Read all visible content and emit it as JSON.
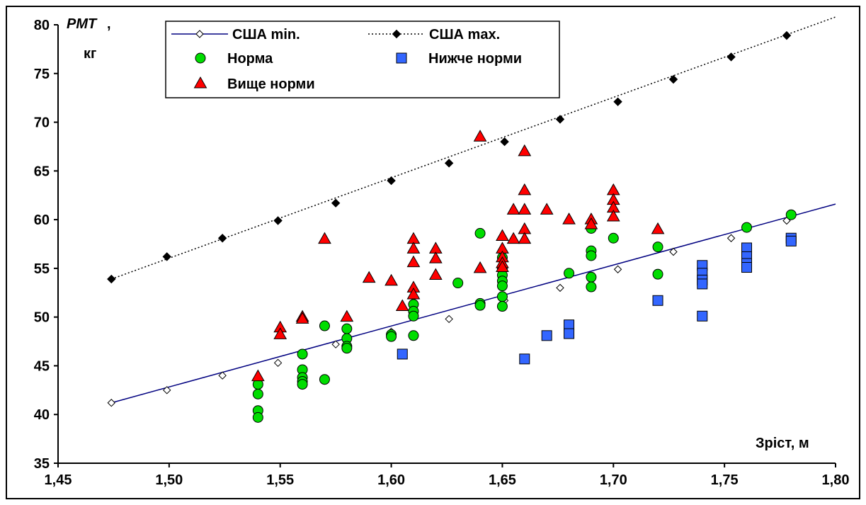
{
  "chart_data": {
    "type": "scatter",
    "xlabel": "Зріст, м",
    "ylabel_line1": "РМТ",
    "ylabel_line1_suffix": ",",
    "ylabel_line2": "кг",
    "xlim": [
      1.45,
      1.8
    ],
    "ylim": [
      35,
      80
    ],
    "x_ticks": [
      1.45,
      1.5,
      1.55,
      1.6,
      1.65,
      1.7,
      1.75,
      1.8
    ],
    "x_tick_labels": [
      "1,45",
      "1,50",
      "1,55",
      "1,60",
      "1,65",
      "1,70",
      "1,75",
      "1,80"
    ],
    "y_ticks": [
      35,
      40,
      45,
      50,
      55,
      60,
      65,
      70,
      75,
      80
    ],
    "y_tick_labels": [
      "35",
      "40",
      "45",
      "50",
      "55",
      "60",
      "65",
      "70",
      "75",
      "80"
    ],
    "grid": false,
    "legend_position": "top-left",
    "series": [
      {
        "name": "США min.",
        "kind": "line",
        "color": "#000080",
        "marker": "diamond-open",
        "points": [
          [
            1.474,
            41.2
          ],
          [
            1.499,
            42.5
          ],
          [
            1.524,
            44.0
          ],
          [
            1.549,
            45.3
          ],
          [
            1.575,
            47.2
          ],
          [
            1.6,
            48.5
          ],
          [
            1.626,
            49.8
          ],
          [
            1.651,
            51.7
          ],
          [
            1.676,
            53.0
          ],
          [
            1.702,
            54.9
          ],
          [
            1.727,
            56.7
          ],
          [
            1.753,
            58.1
          ],
          [
            1.778,
            59.9
          ]
        ],
        "line_extent": [
          [
            1.474,
            41.2
          ],
          [
            1.8,
            61.6
          ]
        ]
      },
      {
        "name": "США max.",
        "kind": "dotted-line",
        "color": "#000000",
        "marker": "diamond-filled",
        "points": [
          [
            1.474,
            53.9
          ],
          [
            1.499,
            56.2
          ],
          [
            1.524,
            58.1
          ],
          [
            1.549,
            59.9
          ],
          [
            1.575,
            61.7
          ],
          [
            1.6,
            64.0
          ],
          [
            1.626,
            65.8
          ],
          [
            1.651,
            68.0
          ],
          [
            1.676,
            70.3
          ],
          [
            1.702,
            72.1
          ],
          [
            1.727,
            74.4
          ],
          [
            1.753,
            76.7
          ],
          [
            1.778,
            78.9
          ]
        ],
        "line_extent": [
          [
            1.474,
            53.9
          ],
          [
            1.8,
            80.8
          ]
        ]
      },
      {
        "name": "Норма",
        "kind": "scatter",
        "color": "#00dd00",
        "marker": "circle",
        "points": [
          [
            1.54,
            43.1
          ],
          [
            1.54,
            42.1
          ],
          [
            1.54,
            40.4
          ],
          [
            1.54,
            39.7
          ],
          [
            1.56,
            46.2
          ],
          [
            1.56,
            44.6
          ],
          [
            1.56,
            43.8
          ],
          [
            1.56,
            43.4
          ],
          [
            1.56,
            43.1
          ],
          [
            1.57,
            49.1
          ],
          [
            1.57,
            43.6
          ],
          [
            1.58,
            48.8
          ],
          [
            1.58,
            47.8
          ],
          [
            1.58,
            47.0
          ],
          [
            1.58,
            46.8
          ],
          [
            1.6,
            48.2
          ],
          [
            1.6,
            48.0
          ],
          [
            1.61,
            51.3
          ],
          [
            1.61,
            50.6
          ],
          [
            1.61,
            50.1
          ],
          [
            1.61,
            48.1
          ],
          [
            1.63,
            53.5
          ],
          [
            1.64,
            58.6
          ],
          [
            1.64,
            51.4
          ],
          [
            1.64,
            51.2
          ],
          [
            1.65,
            56.1
          ],
          [
            1.65,
            55.0
          ],
          [
            1.65,
            54.3
          ],
          [
            1.65,
            53.7
          ],
          [
            1.65,
            53.2
          ],
          [
            1.65,
            52.1
          ],
          [
            1.65,
            51.1
          ],
          [
            1.68,
            54.5
          ],
          [
            1.69,
            59.1
          ],
          [
            1.69,
            56.8
          ],
          [
            1.69,
            56.3
          ],
          [
            1.69,
            54.1
          ],
          [
            1.69,
            53.1
          ],
          [
            1.7,
            58.1
          ],
          [
            1.72,
            57.2
          ],
          [
            1.72,
            54.4
          ],
          [
            1.76,
            59.2
          ],
          [
            1.78,
            60.5
          ]
        ]
      },
      {
        "name": "Нижче норми",
        "kind": "scatter",
        "color": "#3366ff",
        "marker": "square",
        "points": [
          [
            1.605,
            46.2
          ],
          [
            1.66,
            45.7
          ],
          [
            1.67,
            48.1
          ],
          [
            1.68,
            49.2
          ],
          [
            1.68,
            48.3
          ],
          [
            1.72,
            51.7
          ],
          [
            1.74,
            55.3
          ],
          [
            1.74,
            54.5
          ],
          [
            1.74,
            53.8
          ],
          [
            1.74,
            53.4
          ],
          [
            1.74,
            50.1
          ],
          [
            1.76,
            57.1
          ],
          [
            1.76,
            56.2
          ],
          [
            1.76,
            55.5
          ],
          [
            1.76,
            55.1
          ],
          [
            1.78,
            58.1
          ],
          [
            1.78,
            57.8
          ]
        ]
      },
      {
        "name": "Вище норми",
        "kind": "scatter",
        "color": "#ff0000",
        "marker": "triangle",
        "points": [
          [
            1.54,
            43.9
          ],
          [
            1.55,
            48.9
          ],
          [
            1.55,
            48.2
          ],
          [
            1.56,
            50.0
          ],
          [
            1.56,
            49.8
          ],
          [
            1.57,
            58.0
          ],
          [
            1.58,
            50.0
          ],
          [
            1.59,
            54.0
          ],
          [
            1.6,
            53.7
          ],
          [
            1.605,
            51.1
          ],
          [
            1.61,
            58.0
          ],
          [
            1.61,
            57.0
          ],
          [
            1.61,
            55.6
          ],
          [
            1.61,
            53.0
          ],
          [
            1.61,
            52.3
          ],
          [
            1.62,
            57.0
          ],
          [
            1.62,
            56.0
          ],
          [
            1.62,
            54.3
          ],
          [
            1.64,
            68.5
          ],
          [
            1.64,
            55.0
          ],
          [
            1.65,
            58.3
          ],
          [
            1.65,
            57.0
          ],
          [
            1.65,
            56.1
          ],
          [
            1.65,
            55.5
          ],
          [
            1.65,
            55.1
          ],
          [
            1.655,
            61.0
          ],
          [
            1.655,
            58.0
          ],
          [
            1.66,
            67.0
          ],
          [
            1.66,
            63.0
          ],
          [
            1.66,
            61.0
          ],
          [
            1.66,
            59.0
          ],
          [
            1.66,
            58.0
          ],
          [
            1.67,
            61.0
          ],
          [
            1.68,
            60.0
          ],
          [
            1.69,
            60.0
          ],
          [
            1.69,
            59.5
          ],
          [
            1.7,
            63.0
          ],
          [
            1.7,
            62.0
          ],
          [
            1.7,
            61.2
          ],
          [
            1.7,
            60.3
          ],
          [
            1.72,
            59.0
          ]
        ]
      }
    ]
  }
}
